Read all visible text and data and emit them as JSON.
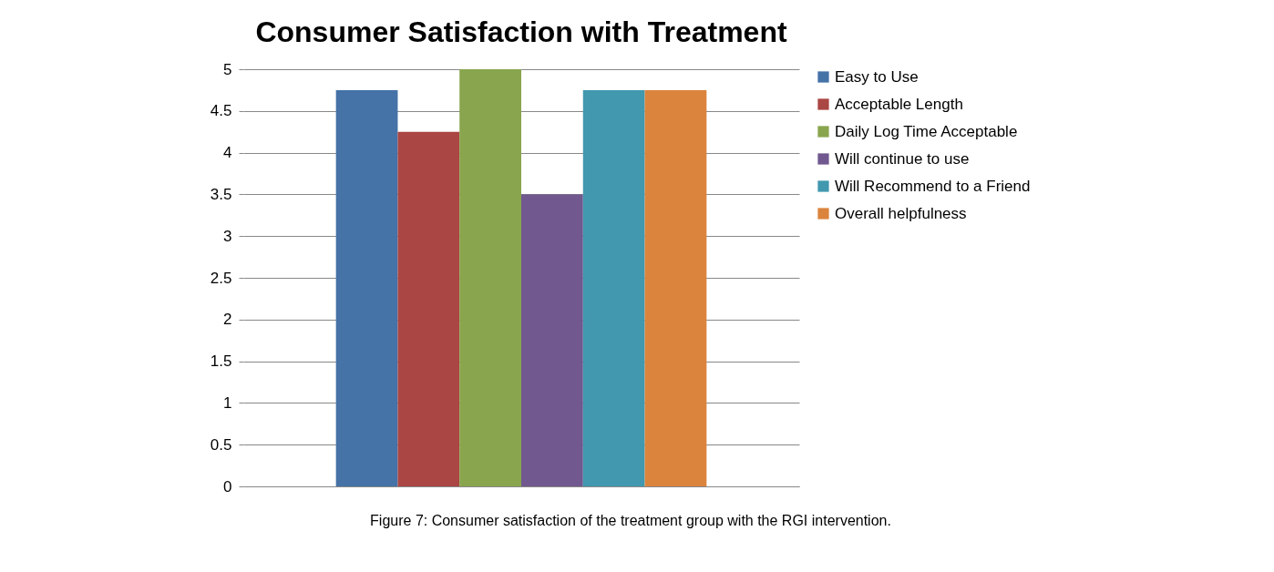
{
  "chart_data": {
    "type": "bar",
    "title": "Consumer Satisfaction with Treatment",
    "categories": [
      null
    ],
    "series": [
      {
        "name": "Easy to Use",
        "color": "#4572a7",
        "values": [
          4.75
        ]
      },
      {
        "name": "Acceptable Length",
        "color": "#aa4643",
        "values": [
          4.25
        ]
      },
      {
        "name": "Daily Log Time Acceptable",
        "color": "#89a54e",
        "values": [
          5
        ]
      },
      {
        "name": "Will continue to use",
        "color": "#71588f",
        "values": [
          3.5
        ]
      },
      {
        "name": "Will Recommend to a Friend",
        "color": "#4198af",
        "values": [
          4.75
        ]
      },
      {
        "name": "Overall helpfulness",
        "color": "#db843d",
        "values": [
          4.75
        ]
      }
    ],
    "ylim": [
      0,
      5
    ],
    "yticks": [
      0,
      0.5,
      1,
      1.5,
      2,
      2.5,
      3,
      3.5,
      4,
      4.5,
      5
    ],
    "grid": "y",
    "legend": "right",
    "tick_labels": "y",
    "annotations": [
      "Figure 7: Consumer satisfaction of the treatment group with the RGI intervention."
    ]
  }
}
